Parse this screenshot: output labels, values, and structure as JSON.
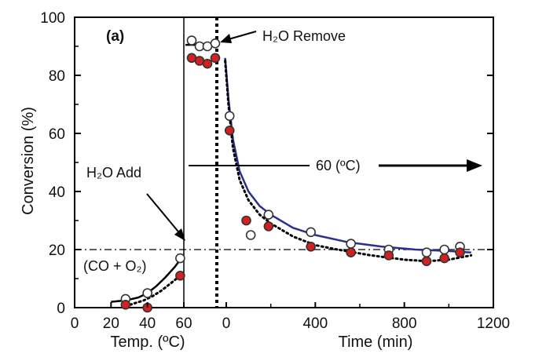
{
  "chart_data": {
    "type": "scatter",
    "panel_label": "(a)",
    "ylabel": "Conversion (%)",
    "ylim": [
      0,
      100
    ],
    "y_ticks": [
      "0",
      "20",
      "40",
      "60",
      "80",
      "100"
    ],
    "left_panel": {
      "xlabel": "Temp. (ºC)",
      "x_ticks": [
        "0",
        "20",
        "40",
        "60"
      ],
      "xlim": [
        0,
        62
      ],
      "series": [
        {
          "marker": "open",
          "color": "#ffffff",
          "x": [
            28,
            40,
            58
          ],
          "y": [
            3,
            5,
            17
          ]
        },
        {
          "marker": "filled",
          "color": "#d42020",
          "x": [
            28,
            40,
            58
          ],
          "y": [
            1,
            0,
            11
          ]
        }
      ],
      "fits": [
        {
          "style": "solid",
          "color": "#000000",
          "x": [
            20,
            28,
            35,
            40,
            45,
            50,
            55,
            58
          ],
          "y": [
            2,
            2.5,
            3.5,
            5,
            7.5,
            10.5,
            14,
            16.5
          ]
        },
        {
          "style": "dotted",
          "color": "#000000",
          "x": [
            28,
            33,
            38,
            43,
            48,
            53,
            58
          ],
          "y": [
            0.5,
            1.5,
            2.5,
            4,
            6,
            8.5,
            11
          ]
        }
      ]
    },
    "transition_series": [
      {
        "marker": "open",
        "color": "#ffffff",
        "y": [
          92,
          90,
          90,
          91
        ]
      },
      {
        "marker": "filled",
        "color": "#d42020",
        "y": [
          86,
          85,
          84,
          86
        ]
      }
    ],
    "right_panel": {
      "xlabel": "Time (min)",
      "x_ticks": [
        "0",
        "400",
        "800",
        "1200"
      ],
      "xlim": [
        -30,
        1200
      ],
      "series": [
        {
          "marker": "open",
          "color": "#ffffff",
          "x": [
            15,
            110,
            190,
            380,
            560,
            730,
            900,
            980,
            1050
          ],
          "y": [
            66,
            25,
            32,
            26,
            22,
            20,
            19,
            20,
            21
          ]
        },
        {
          "marker": "filled",
          "color": "#d42020",
          "x": [
            15,
            90,
            190,
            380,
            560,
            730,
            900,
            980,
            1050
          ],
          "y": [
            61,
            30,
            28,
            21,
            19,
            18,
            16,
            17,
            19
          ]
        }
      ],
      "fits": [
        {
          "style": "solid",
          "color": "#2b2f8f",
          "x": [
            -5,
            10,
            30,
            60,
            100,
            150,
            200,
            300,
            400,
            550,
            700,
            850,
            1000,
            1100
          ],
          "y": [
            86,
            72,
            58,
            47,
            40,
            35,
            32,
            27.5,
            25,
            22.5,
            21,
            20,
            19.5,
            19
          ]
        },
        {
          "style": "dotted",
          "color": "#000000",
          "x": [
            -5,
            10,
            30,
            60,
            100,
            150,
            200,
            300,
            400,
            500,
            650,
            800,
            900,
            1000,
            1100
          ],
          "y": [
            85,
            70,
            55,
            44,
            37,
            32,
            29,
            24.5,
            21.5,
            20,
            18,
            16.5,
            16,
            16.5,
            18
          ]
        }
      ]
    },
    "reference_line": {
      "y": 20,
      "style": "dashdot"
    },
    "annotations": {
      "h2o_add": "H₂O Add",
      "h2o_remove": "H₂O Remove",
      "co_o2": "(CO + O₂)",
      "temp_60": "60 (ºC)"
    }
  }
}
